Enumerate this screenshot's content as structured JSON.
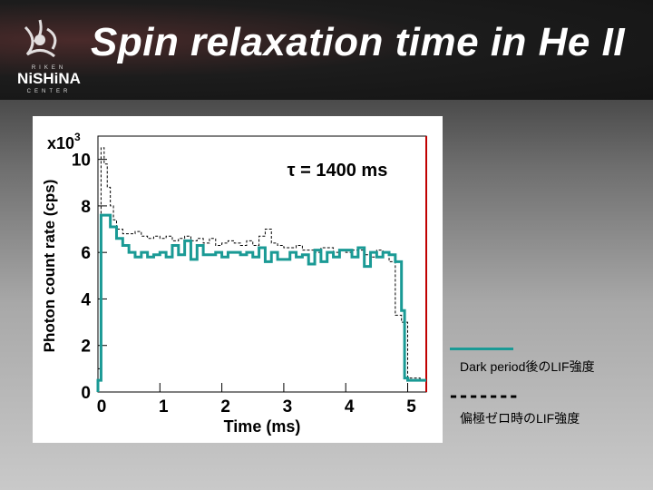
{
  "slide": {
    "title": "Spin relaxation time in He II",
    "logo": {
      "icon": "riken-nishina-logo",
      "line1": "RIKEN",
      "line2": "NiSHiNA",
      "line3": "CENTER"
    }
  },
  "chart_data": {
    "type": "line",
    "ylabel": "Photon count rate (cps)",
    "xlabel": "Time (ms)",
    "y_multiplier_label": "x10",
    "y_multiplier_exp": "3",
    "annotation": "τ = 1400 ms",
    "xlim": [
      0,
      5.3
    ],
    "ylim": [
      0,
      11
    ],
    "x_ticks": [
      0,
      1,
      2,
      3,
      4,
      5
    ],
    "y_ticks": [
      0,
      2,
      4,
      6,
      8,
      10
    ],
    "series": [
      {
        "name": "Dark period後のLIF強度",
        "style": "solid",
        "color": "#1a9a95",
        "x": [
          0.0,
          0.05,
          0.2,
          0.3,
          0.4,
          0.5,
          0.6,
          0.7,
          0.8,
          0.9,
          1.0,
          1.1,
          1.2,
          1.3,
          1.4,
          1.5,
          1.6,
          1.7,
          1.8,
          1.9,
          2.0,
          2.1,
          2.2,
          2.3,
          2.4,
          2.5,
          2.6,
          2.7,
          2.8,
          2.9,
          3.0,
          3.1,
          3.2,
          3.3,
          3.4,
          3.5,
          3.6,
          3.7,
          3.8,
          3.9,
          4.0,
          4.1,
          4.2,
          4.3,
          4.4,
          4.5,
          4.6,
          4.7,
          4.8,
          4.9,
          4.95,
          5.0,
          5.2
        ],
        "y": [
          0.5,
          7.6,
          7.1,
          6.6,
          6.3,
          6.0,
          5.8,
          6.0,
          5.8,
          5.9,
          6.0,
          5.8,
          6.3,
          5.9,
          6.5,
          5.7,
          6.3,
          5.9,
          5.9,
          6.0,
          5.8,
          6.0,
          6.0,
          5.9,
          6.0,
          5.8,
          6.2,
          5.6,
          6.0,
          5.7,
          5.7,
          6.0,
          5.8,
          5.9,
          5.5,
          6.1,
          5.6,
          6.0,
          5.8,
          6.1,
          6.1,
          5.8,
          6.2,
          5.4,
          6.0,
          5.8,
          6.0,
          5.9,
          5.6,
          3.5,
          0.6,
          0.5,
          0.5
        ]
      },
      {
        "name": "偏極ゼロ時のLIF強度",
        "style": "dashed",
        "color": "#000000",
        "x": [
          0.0,
          0.05,
          0.1,
          0.15,
          0.2,
          0.25,
          0.3,
          0.4,
          0.5,
          0.6,
          0.7,
          0.8,
          0.9,
          1.0,
          1.1,
          1.2,
          1.3,
          1.4,
          1.5,
          1.6,
          1.7,
          1.8,
          1.9,
          2.0,
          2.1,
          2.2,
          2.3,
          2.4,
          2.5,
          2.6,
          2.7,
          2.8,
          2.9,
          3.0,
          3.1,
          3.2,
          3.3,
          3.4,
          3.5,
          3.6,
          3.7,
          3.8,
          3.9,
          4.0,
          4.1,
          4.2,
          4.3,
          4.4,
          4.5,
          4.6,
          4.7,
          4.8,
          4.9,
          5.0,
          5.2
        ],
        "y": [
          1.0,
          10.5,
          9.8,
          8.8,
          8.0,
          7.4,
          7.0,
          6.8,
          6.8,
          6.9,
          6.7,
          6.6,
          6.7,
          6.6,
          6.7,
          6.5,
          6.6,
          6.7,
          6.5,
          6.6,
          6.4,
          6.6,
          6.3,
          6.4,
          6.5,
          6.4,
          6.3,
          6.5,
          6.3,
          6.7,
          7.0,
          6.4,
          6.3,
          6.2,
          6.2,
          6.3,
          6.1,
          6.1,
          6.0,
          6.2,
          6.2,
          6.0,
          6.1,
          6.0,
          6.1,
          6.1,
          5.9,
          5.8,
          6.1,
          6.0,
          5.6,
          3.3,
          3.0,
          0.6,
          0.5
        ]
      }
    ]
  }
}
